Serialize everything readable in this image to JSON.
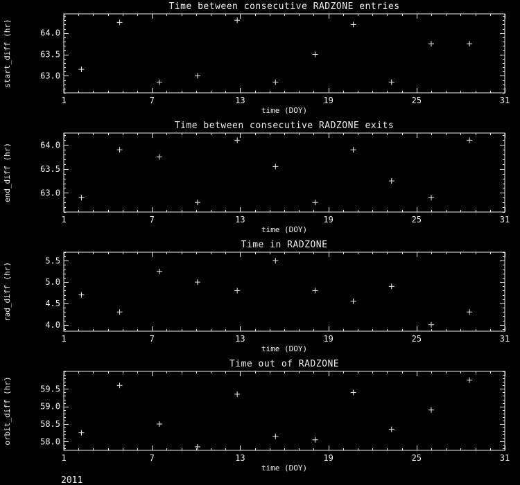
{
  "colors": {
    "background": "#000000",
    "foreground": "#f0f0f0"
  },
  "footer": {
    "year": "2011"
  },
  "chart_data": [
    {
      "type": "scatter",
      "title": "Time between consecutive RADZONE entries",
      "xlabel": "time (DOY)",
      "ylabel": "start_diff (hr)",
      "xlim": [
        1,
        31
      ],
      "ylim": [
        62.6,
        64.45
      ],
      "xticks": [
        1,
        7,
        13,
        19,
        25,
        31
      ],
      "yticks": [
        63.0,
        63.5,
        64.0
      ],
      "xminor": 1,
      "yminor": 0.1,
      "marker": "+",
      "grid": false,
      "x": [
        2.2,
        4.8,
        7.5,
        10.1,
        12.8,
        15.4,
        18.1,
        20.7,
        23.3,
        26.0,
        28.6
      ],
      "y": [
        63.15,
        64.25,
        62.85,
        63.0,
        64.3,
        62.85,
        63.5,
        64.2,
        62.85,
        63.75,
        63.75
      ]
    },
    {
      "type": "scatter",
      "title": "Time between consecutive RADZONE exits",
      "xlabel": "time (DOY)",
      "ylabel": "end_diff (hr)",
      "xlim": [
        1,
        31
      ],
      "ylim": [
        62.6,
        64.25
      ],
      "xticks": [
        1,
        7,
        13,
        19,
        25,
        31
      ],
      "yticks": [
        63.0,
        63.5,
        64.0
      ],
      "xminor": 1,
      "yminor": 0.1,
      "marker": "+",
      "grid": false,
      "x": [
        2.2,
        4.8,
        7.5,
        10.1,
        12.8,
        15.4,
        18.1,
        20.7,
        23.3,
        26.0,
        28.6
      ],
      "y": [
        62.9,
        63.9,
        63.75,
        62.8,
        64.1,
        63.55,
        62.8,
        63.9,
        63.25,
        62.9,
        64.1
      ]
    },
    {
      "type": "scatter",
      "title": "Time in RADZONE",
      "xlabel": "time (DOY)",
      "ylabel": "rad_diff (hr)",
      "xlim": [
        1,
        31
      ],
      "ylim": [
        3.85,
        5.7
      ],
      "xticks": [
        1,
        7,
        13,
        19,
        25,
        31
      ],
      "yticks": [
        4.0,
        4.5,
        5.0,
        5.5
      ],
      "xminor": 1,
      "yminor": 0.1,
      "marker": "+",
      "grid": false,
      "x": [
        2.2,
        4.8,
        7.5,
        10.1,
        12.8,
        15.4,
        18.1,
        20.7,
        23.3,
        26.0,
        28.6
      ],
      "y": [
        4.7,
        4.3,
        5.25,
        5.0,
        4.8,
        5.5,
        4.8,
        4.55,
        4.9,
        4.0,
        4.3
      ]
    },
    {
      "type": "scatter",
      "title": "Time out of RADZONE",
      "xlabel": "time (DOY)",
      "ylabel": "orbit_diff (hr)",
      "xlim": [
        1,
        31
      ],
      "ylim": [
        57.75,
        60.0
      ],
      "xticks": [
        1,
        7,
        13,
        19,
        25,
        31
      ],
      "yticks": [
        58.0,
        58.5,
        59.0,
        59.5
      ],
      "xminor": 1,
      "yminor": 0.1,
      "marker": "+",
      "grid": false,
      "x": [
        2.2,
        4.8,
        7.5,
        10.1,
        12.8,
        15.4,
        18.1,
        20.7,
        23.3,
        26.0,
        28.6
      ],
      "y": [
        58.25,
        59.6,
        58.5,
        57.85,
        59.35,
        58.15,
        58.05,
        59.4,
        58.35,
        58.9,
        59.75
      ]
    }
  ]
}
